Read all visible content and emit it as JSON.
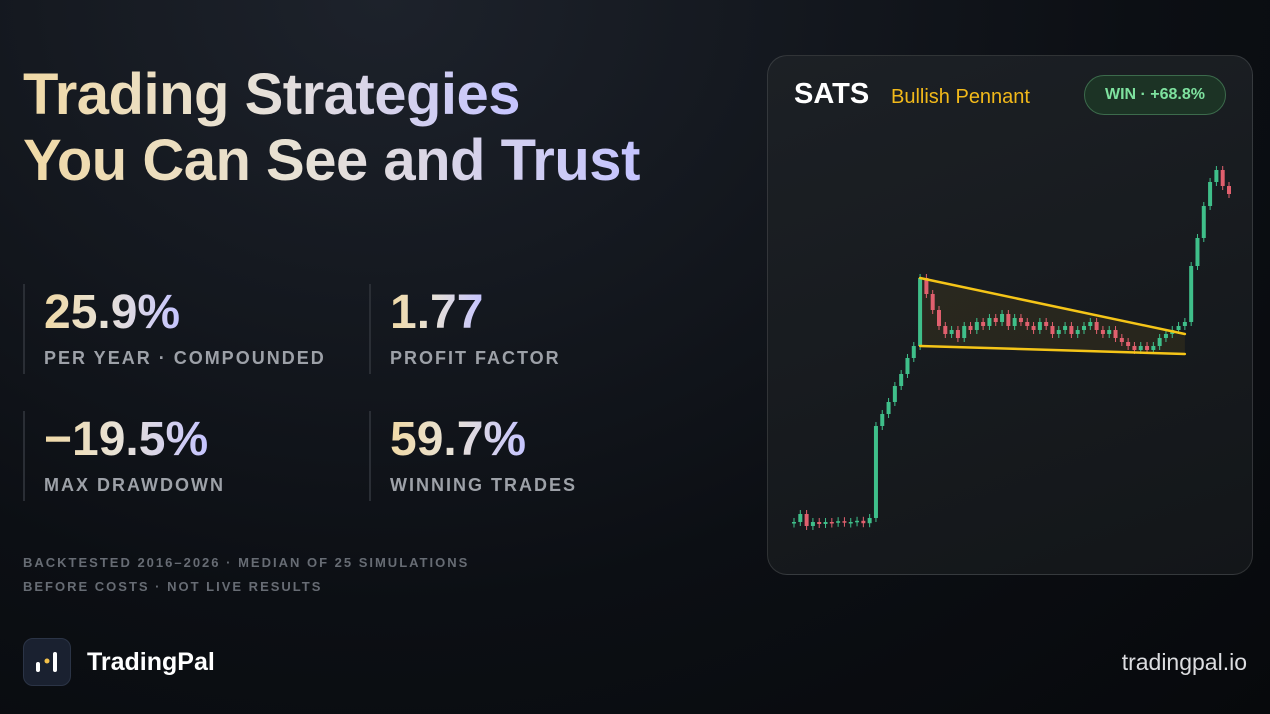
{
  "headline": {
    "line1": "Trading Strategies",
    "line2": "You Can See and Trust"
  },
  "stats": [
    {
      "value": "25.9%",
      "label": "PER YEAR · COMPOUNDED"
    },
    {
      "value": "1.77",
      "label": "PROFIT FACTOR"
    },
    {
      "value": "−19.5%",
      "label": "MAX DRAWDOWN"
    },
    {
      "value": "59.7%",
      "label": "WINNING TRADES"
    }
  ],
  "disclaimer": [
    "BACKTESTED 2016–2026 · MEDIAN OF 25 SIMULATIONS",
    "BEFORE COSTS · NOT LIVE RESULTS"
  ],
  "brand": {
    "name": "TradingPal",
    "url": "tradingpal.io"
  },
  "chart_card": {
    "ticker": "SATS",
    "pattern": "Bullish Pennant",
    "result": "WIN · +68.8%"
  },
  "chart_data": {
    "type": "candlestick",
    "closes": [
      11,
      13,
      10,
      11,
      10.5,
      11,
      10.8,
      11.2,
      10.9,
      11,
      11.3,
      10.7,
      12,
      35,
      38,
      41,
      45,
      48,
      52,
      55,
      72,
      68,
      64,
      60,
      58,
      59,
      57,
      60,
      59,
      61,
      60,
      62,
      61,
      63,
      60,
      62,
      61,
      60,
      59,
      61,
      60,
      58,
      59,
      60,
      58,
      59,
      60,
      61,
      59,
      58,
      59,
      57,
      56,
      55,
      54,
      55,
      54,
      55,
      57,
      58,
      59,
      60,
      61,
      75,
      82,
      90,
      96,
      99,
      95,
      93
    ],
    "ylim": [
      5,
      105
    ],
    "up_color": "#3fbf8a",
    "down_color": "#e0606e",
    "trendline_color": "#f5c518",
    "trendlines": {
      "upper": {
        "x": [
          20,
          62
        ],
        "y": [
          72,
          58
        ]
      },
      "lower": {
        "x": [
          20,
          62
        ],
        "y": [
          55,
          53
        ]
      }
    }
  }
}
